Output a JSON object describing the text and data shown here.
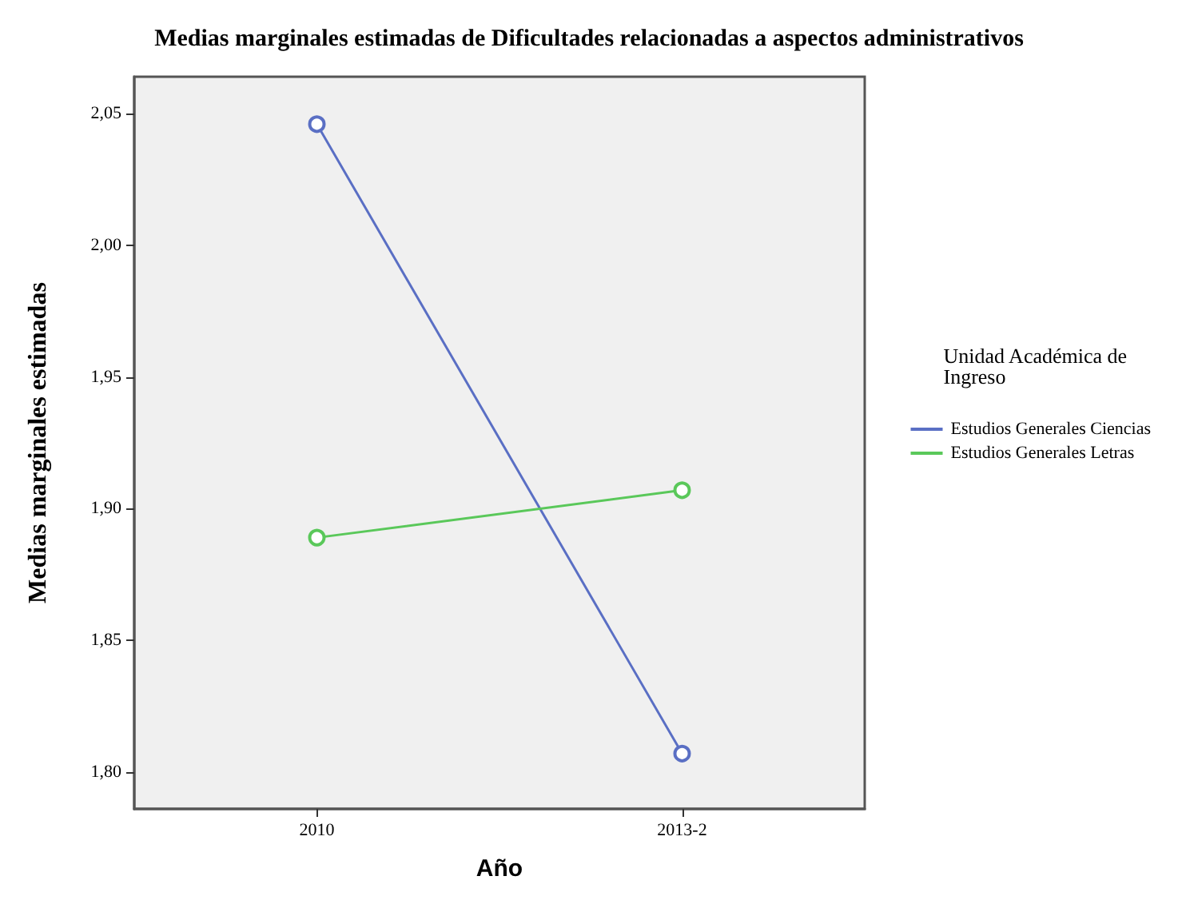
{
  "chart_data": {
    "type": "line",
    "title": "Medias marginales estimadas de Dificultades relacionadas a aspectos administrativos",
    "xlabel": "Año",
    "ylabel": "Medias marginales estimadas",
    "legend_title": "Unidad Académica de Ingreso",
    "categories": [
      "2010",
      "2013-2"
    ],
    "series": [
      {
        "name": "Estudios Generales Ciencias",
        "color": "#5a6fc4",
        "values": [
          2.046,
          1.807
        ]
      },
      {
        "name": "Estudios Generales Letras",
        "color": "#5ac85a",
        "values": [
          1.889,
          1.907
        ]
      }
    ],
    "ylim": [
      1.786,
      2.064
    ],
    "yticks": [
      {
        "value": 1.8,
        "label": "1,80"
      },
      {
        "value": 1.85,
        "label": "1,85"
      },
      {
        "value": 1.9,
        "label": "1,90"
      },
      {
        "value": 1.95,
        "label": "1,95"
      },
      {
        "value": 2.0,
        "label": "2,00"
      },
      {
        "value": 2.05,
        "label": "2,05"
      }
    ],
    "grid": false,
    "legend": "right",
    "marker": "circle",
    "line_style": "solid"
  }
}
